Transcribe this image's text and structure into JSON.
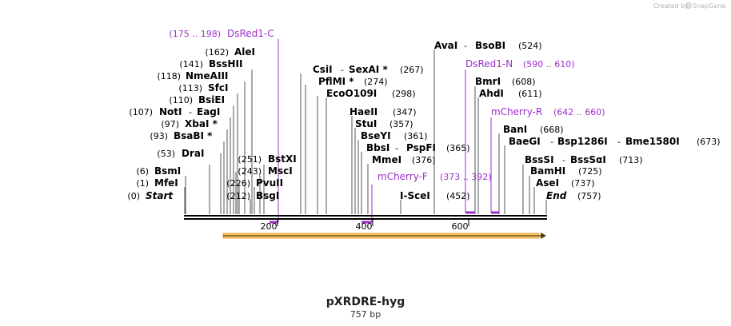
{
  "credit": {
    "text": "Created by",
    "brand": "SnapGene"
  },
  "map": {
    "name": "pXRDRE-hyg",
    "length_label": "757 bp",
    "sequence_length": 757
  },
  "ruler_ticks": [
    "200",
    "400",
    "600"
  ],
  "left_sites": [
    {
      "pos": "(175 .. 198)",
      "name": "DsRed1-C",
      "kind": "primer"
    },
    {
      "pos": "(162)",
      "name": "AleI"
    },
    {
      "pos": "(141)",
      "name": "BssHII"
    },
    {
      "pos": "(118)",
      "name": "NmeAIII"
    },
    {
      "pos": "(113)",
      "name": "SfcI"
    },
    {
      "pos": "(110)",
      "name": "BsiEI"
    },
    {
      "pos": "(107)",
      "name": "NotI",
      "extra": "EagI"
    },
    {
      "pos": "(97)",
      "name": "XbaI *"
    },
    {
      "pos": "(93)",
      "name": "BsaBI *"
    },
    {
      "pos": "(53)",
      "name": "DraI"
    },
    {
      "pos": "(6)",
      "name": "BsmI"
    },
    {
      "pos": "(1)",
      "name": "MfeI"
    },
    {
      "pos": "(0)",
      "name": "Start",
      "kind": "terminus"
    }
  ],
  "mid_left_sites": [
    {
      "pos": "(251)",
      "name": "BstXI"
    },
    {
      "pos": "(243)",
      "name": "MscI"
    },
    {
      "pos": "(226)",
      "name": "PvuII"
    },
    {
      "pos": "(212)",
      "name": "BsgI"
    }
  ],
  "center_sites": [
    {
      "name": "CsiI",
      "extra": "SexAI *",
      "pos": "(267)"
    },
    {
      "name": "PflMI *",
      "pos": "(274)"
    },
    {
      "name": "EcoO109I",
      "pos": "(298)"
    },
    {
      "name": "HaeII",
      "pos": "(347)"
    },
    {
      "name": "StuI",
      "pos": "(357)"
    },
    {
      "name": "BseYI",
      "pos": "(361)"
    },
    {
      "name": "BbsI",
      "extra": "PspFI",
      "pos": "(365)"
    },
    {
      "name": "MmeI",
      "pos": "(376)"
    },
    {
      "name": "mCherry-F",
      "pos": "(373 .. 392)",
      "kind": "primer"
    },
    {
      "name": "I-SceI",
      "pos": "(452)"
    }
  ],
  "right_sites": [
    {
      "name": "AvaI",
      "extra": "BsoBI",
      "pos": "(524)"
    },
    {
      "name": "DsRed1-N",
      "pos": "(590 .. 610)",
      "kind": "primer"
    },
    {
      "name": "BmrI",
      "pos": "(608)"
    },
    {
      "name": "AhdI",
      "pos": "(611)"
    },
    {
      "name": "mCherry-R",
      "pos": "(642 .. 660)",
      "kind": "primer"
    },
    {
      "name": "BanI",
      "pos": "(668)"
    },
    {
      "name": "BaeGI",
      "extra": "Bsp1286I",
      "extra2": "Bme1580I",
      "pos": "(673)"
    },
    {
      "name": "BssSI",
      "extra": "BssSαI",
      "pos": "(713)"
    },
    {
      "name": "BamHI",
      "pos": "(725)"
    },
    {
      "name": "AseI",
      "pos": "(737)"
    },
    {
      "name": "End",
      "pos": "(757)",
      "kind": "terminus"
    }
  ],
  "colors": {
    "primer": "#9b2fc8",
    "feature_fill": "#f5a623",
    "feature_stroke": "#7a4f0a",
    "backbone": "#000000"
  }
}
